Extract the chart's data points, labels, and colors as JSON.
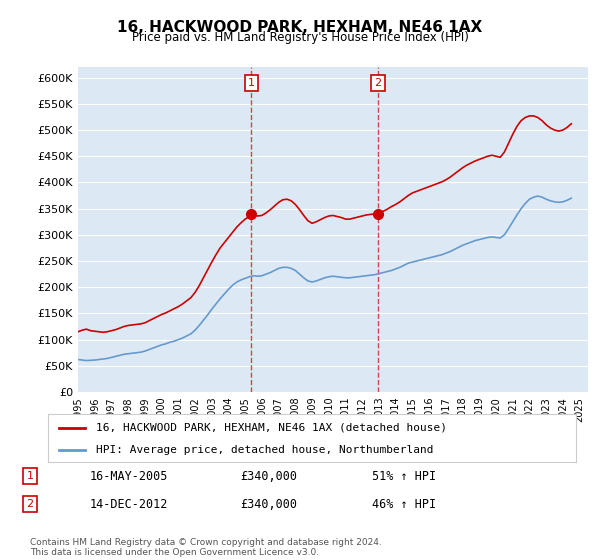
{
  "title": "16, HACKWOOD PARK, HEXHAM, NE46 1AX",
  "subtitle": "Price paid vs. HM Land Registry's House Price Index (HPI)",
  "background_color": "#dce9f5",
  "plot_bg_color": "#dce9f5",
  "ylabel_format": "£{0}K",
  "yticks": [
    0,
    50000,
    100000,
    150000,
    200000,
    250000,
    300000,
    350000,
    400000,
    450000,
    500000,
    550000,
    600000
  ],
  "ytick_labels": [
    "£0",
    "£50K",
    "£100K",
    "£150K",
    "£200K",
    "£250K",
    "£300K",
    "£350K",
    "£400K",
    "£450K",
    "£500K",
    "£550K",
    "£600K"
  ],
  "xlim_start": 1995.0,
  "xlim_end": 2025.5,
  "ylim_min": 0,
  "ylim_max": 620000,
  "vline1_x": 2005.37,
  "vline2_x": 2012.95,
  "sale1_x": 2005.37,
  "sale1_y": 340000,
  "sale2_x": 2012.95,
  "sale2_y": 340000,
  "legend_line1": "16, HACKWOOD PARK, HEXHAM, NE46 1AX (detached house)",
  "legend_line2": "HPI: Average price, detached house, Northumberland",
  "annotation1_label": "1",
  "annotation2_label": "2",
  "annotation1_date": "16-MAY-2005",
  "annotation1_price": "£340,000",
  "annotation1_hpi": "51% ↑ HPI",
  "annotation2_date": "14-DEC-2012",
  "annotation2_price": "£340,000",
  "annotation2_hpi": "46% ↑ HPI",
  "footnote": "Contains HM Land Registry data © Crown copyright and database right 2024.\nThis data is licensed under the Open Government Licence v3.0.",
  "red_line_color": "#cc0000",
  "blue_line_color": "#6699cc",
  "hpi_years": [
    1995.0,
    1995.25,
    1995.5,
    1995.75,
    1996.0,
    1996.25,
    1996.5,
    1996.75,
    1997.0,
    1997.25,
    1997.5,
    1997.75,
    1998.0,
    1998.25,
    1998.5,
    1998.75,
    1999.0,
    1999.25,
    1999.5,
    1999.75,
    2000.0,
    2000.25,
    2000.5,
    2000.75,
    2001.0,
    2001.25,
    2001.5,
    2001.75,
    2002.0,
    2002.25,
    2002.5,
    2002.75,
    2003.0,
    2003.25,
    2003.5,
    2003.75,
    2004.0,
    2004.25,
    2004.5,
    2004.75,
    2005.0,
    2005.25,
    2005.5,
    2005.75,
    2006.0,
    2006.25,
    2006.5,
    2006.75,
    2007.0,
    2007.25,
    2007.5,
    2007.75,
    2008.0,
    2008.25,
    2008.5,
    2008.75,
    2009.0,
    2009.25,
    2009.5,
    2009.75,
    2010.0,
    2010.25,
    2010.5,
    2010.75,
    2011.0,
    2011.25,
    2011.5,
    2011.75,
    2012.0,
    2012.25,
    2012.5,
    2012.75,
    2013.0,
    2013.25,
    2013.5,
    2013.75,
    2014.0,
    2014.25,
    2014.5,
    2014.75,
    2015.0,
    2015.25,
    2015.5,
    2015.75,
    2016.0,
    2016.25,
    2016.5,
    2016.75,
    2017.0,
    2017.25,
    2017.5,
    2017.75,
    2018.0,
    2018.25,
    2018.5,
    2018.75,
    2019.0,
    2019.25,
    2019.5,
    2019.75,
    2020.0,
    2020.25,
    2020.5,
    2020.75,
    2021.0,
    2021.25,
    2021.5,
    2021.75,
    2022.0,
    2022.25,
    2022.5,
    2022.75,
    2023.0,
    2023.25,
    2023.5,
    2023.75,
    2024.0,
    2024.25,
    2024.5
  ],
  "hpi_values": [
    62000,
    61000,
    60000,
    60500,
    61000,
    62000,
    63000,
    64000,
    66000,
    68000,
    70000,
    72000,
    73000,
    74000,
    75000,
    76000,
    78000,
    81000,
    84000,
    87000,
    90000,
    92000,
    95000,
    97000,
    100000,
    103000,
    107000,
    111000,
    118000,
    127000,
    137000,
    147000,
    158000,
    168000,
    178000,
    187000,
    196000,
    204000,
    210000,
    214000,
    217000,
    220000,
    222000,
    221000,
    222000,
    225000,
    228000,
    232000,
    236000,
    238000,
    238000,
    236000,
    232000,
    225000,
    218000,
    212000,
    210000,
    212000,
    215000,
    218000,
    220000,
    221000,
    220000,
    219000,
    218000,
    218000,
    219000,
    220000,
    221000,
    222000,
    223000,
    224000,
    226000,
    228000,
    230000,
    232000,
    235000,
    238000,
    242000,
    246000,
    248000,
    250000,
    252000,
    254000,
    256000,
    258000,
    260000,
    262000,
    265000,
    268000,
    272000,
    276000,
    280000,
    283000,
    286000,
    289000,
    291000,
    293000,
    295000,
    296000,
    295000,
    294000,
    300000,
    312000,
    325000,
    338000,
    350000,
    360000,
    368000,
    372000,
    374000,
    372000,
    368000,
    365000,
    363000,
    362000,
    363000,
    366000,
    370000
  ],
  "price_years": [
    1995.0,
    1995.25,
    1995.5,
    1995.75,
    1996.0,
    1996.25,
    1996.5,
    1996.75,
    1997.0,
    1997.25,
    1997.5,
    1997.75,
    1998.0,
    1998.25,
    1998.5,
    1998.75,
    1999.0,
    1999.25,
    1999.5,
    1999.75,
    2000.0,
    2000.25,
    2000.5,
    2000.75,
    2001.0,
    2001.25,
    2001.5,
    2001.75,
    2002.0,
    2002.25,
    2002.5,
    2002.75,
    2003.0,
    2003.25,
    2003.5,
    2003.75,
    2004.0,
    2004.25,
    2004.5,
    2004.75,
    2005.0,
    2005.25,
    2005.5,
    2005.75,
    2006.0,
    2006.25,
    2006.5,
    2006.75,
    2007.0,
    2007.25,
    2007.5,
    2007.75,
    2008.0,
    2008.25,
    2008.5,
    2008.75,
    2009.0,
    2009.25,
    2009.5,
    2009.75,
    2010.0,
    2010.25,
    2010.5,
    2010.75,
    2011.0,
    2011.25,
    2011.5,
    2011.75,
    2012.0,
    2012.25,
    2012.5,
    2012.75,
    2013.0,
    2013.25,
    2013.5,
    2013.75,
    2014.0,
    2014.25,
    2014.5,
    2014.75,
    2015.0,
    2015.25,
    2015.5,
    2015.75,
    2016.0,
    2016.25,
    2016.5,
    2016.75,
    2017.0,
    2017.25,
    2017.5,
    2017.75,
    2018.0,
    2018.25,
    2018.5,
    2018.75,
    2019.0,
    2019.25,
    2019.5,
    2019.75,
    2020.0,
    2020.25,
    2020.5,
    2020.75,
    2021.0,
    2021.25,
    2021.5,
    2021.75,
    2022.0,
    2022.25,
    2022.5,
    2022.75,
    2023.0,
    2023.25,
    2023.5,
    2023.75,
    2024.0,
    2024.25,
    2024.5
  ],
  "price_values": [
    115000,
    118000,
    120000,
    117000,
    116000,
    115000,
    114000,
    115000,
    117000,
    119000,
    122000,
    125000,
    127000,
    128000,
    129000,
    130000,
    132000,
    136000,
    140000,
    144000,
    148000,
    151000,
    155000,
    159000,
    163000,
    168000,
    174000,
    180000,
    190000,
    203000,
    218000,
    233000,
    248000,
    262000,
    275000,
    285000,
    295000,
    305000,
    315000,
    323000,
    330000,
    335000,
    338000,
    336000,
    337000,
    342000,
    348000,
    355000,
    362000,
    367000,
    368000,
    365000,
    358000,
    348000,
    337000,
    327000,
    322000,
    325000,
    329000,
    333000,
    336000,
    337000,
    335000,
    333000,
    330000,
    330000,
    332000,
    334000,
    336000,
    338000,
    339000,
    340000,
    342000,
    345000,
    349000,
    354000,
    358000,
    363000,
    369000,
    375000,
    380000,
    383000,
    386000,
    389000,
    392000,
    395000,
    398000,
    401000,
    405000,
    410000,
    416000,
    422000,
    428000,
    433000,
    437000,
    441000,
    444000,
    447000,
    450000,
    452000,
    450000,
    448000,
    458000,
    475000,
    492000,
    507000,
    518000,
    524000,
    527000,
    527000,
    524000,
    518000,
    510000,
    504000,
    500000,
    498000,
    500000,
    505000,
    512000
  ]
}
